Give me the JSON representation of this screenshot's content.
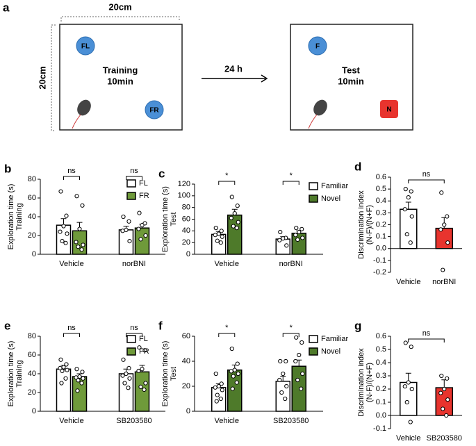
{
  "diagram": {
    "panel": "a",
    "width_label": "20cm",
    "height_label": "20cm",
    "left": {
      "obj1": "FL",
      "obj2": "FR",
      "title": "Training",
      "duration": "10min"
    },
    "delay": "24 h",
    "right": {
      "obj1": "F",
      "obj2": "N",
      "title": "Test",
      "duration": "10min"
    }
  },
  "chart_data": [
    {
      "type": "bar",
      "panel": "b",
      "ylabel": [
        "Exploration time  (s)",
        "Training"
      ],
      "categories": [
        "Vehicle",
        "norBNI"
      ],
      "significance": [
        "ns",
        "ns"
      ],
      "series": [
        {
          "name": "FL",
          "color": "#ffffff",
          "values": [
            31,
            26
          ],
          "errors": [
            7,
            4
          ],
          "points": [
            [
              67,
              41,
              30,
              24,
              22,
              14,
              12
            ],
            [
              40,
              35,
              26,
              25,
              14
            ]
          ]
        },
        {
          "name": "FR",
          "color": "#6f9a3a",
          "values": [
            25,
            28
          ],
          "errors": [
            9,
            4
          ],
          "points": [
            [
              62,
              52,
              27,
              13,
              10,
              8,
              5
            ],
            [
              44,
              33,
              31,
              27,
              20,
              16
            ]
          ]
        }
      ],
      "ylim": [
        0,
        80
      ],
      "yticks": [
        0,
        20,
        40,
        60,
        80
      ]
    },
    {
      "type": "bar",
      "panel": "c",
      "ylabel": [
        "Exploration time  (s)",
        "Test"
      ],
      "categories": [
        "Vehicle",
        "norBNI"
      ],
      "significance": [
        "*",
        "*"
      ],
      "series": [
        {
          "name": "Familiar",
          "color": "#ffffff",
          "values": [
            34,
            26
          ],
          "errors": [
            5,
            4
          ],
          "points": [
            [
              45,
              40,
              35,
              33,
              30,
              23,
              20
            ],
            [
              38,
              28,
              27,
              24,
              15
            ]
          ]
        },
        {
          "name": "Novel",
          "color": "#4e7a2a",
          "values": [
            67,
            36
          ],
          "errors": [
            10,
            4
          ],
          "points": [
            [
              98,
              83,
              70,
              62,
              55,
              48,
              45
            ],
            [
              45,
              43,
              38,
              33,
              28,
              25
            ]
          ]
        }
      ],
      "ylim": [
        0,
        120
      ],
      "yticks": [
        0,
        20,
        40,
        60,
        80,
        100,
        120
      ]
    },
    {
      "type": "bar",
      "panel": "d",
      "ylabel": [
        "Discrimination index",
        "(N-F)/(N+F)"
      ],
      "categories": [
        "Vehicle",
        "norBNI"
      ],
      "significance": "ns",
      "values": [
        0.33,
        0.17
      ],
      "errors": [
        0.06,
        0.09
      ],
      "colors": [
        "#ffffff",
        "#e8342e"
      ],
      "points": [
        [
          0.5,
          0.48,
          0.43,
          0.33,
          0.27,
          0.12,
          0.05
        ],
        [
          0.47,
          0.27,
          0.2,
          0.16,
          0.05,
          -0.18
        ]
      ],
      "ylim": [
        -0.2,
        0.6
      ],
      "yticks": [
        -0.2,
        -0.1,
        {
          "value": 0,
          "label": "0.0"
        },
        0.1,
        0.2,
        0.3,
        0.4,
        0.5,
        0.6
      ]
    },
    {
      "type": "bar",
      "panel": "e",
      "ylabel": [
        "Exploration time  (s)",
        "Training"
      ],
      "categories": [
        "Vehicle",
        "SB203580"
      ],
      "significance": [
        "ns",
        "ns"
      ],
      "series": [
        {
          "name": "FL",
          "color": "#ffffff",
          "values": [
            45,
            40
          ],
          "errors": [
            4,
            5
          ],
          "points": [
            [
              55,
              50,
              47,
              46,
              44,
              43,
              35,
              30
            ],
            [
              55,
              46,
              40,
              38,
              35,
              30,
              25
            ]
          ]
        },
        {
          "name": "FR",
          "color": "#6f9a3a",
          "values": [
            37,
            42
          ],
          "errors": [
            3,
            7
          ],
          "points": [
            [
              45,
              42,
              37,
              36,
              35,
              33,
              30,
              22
            ],
            [
              68,
              65,
              45,
              43,
              30,
              26,
              23
            ]
          ]
        }
      ],
      "ylim": [
        0,
        80
      ],
      "yticks": [
        0,
        20,
        40,
        60,
        80
      ]
    },
    {
      "type": "bar",
      "panel": "f",
      "ylabel": [
        "Exploration time  (s)",
        "Test"
      ],
      "categories": [
        "Vehicle",
        "SB203580"
      ],
      "significance": [
        "*",
        "*"
      ],
      "series": [
        {
          "name": "Familiar",
          "color": "#ffffff",
          "values": [
            19,
            24
          ],
          "errors": [
            3,
            4
          ],
          "points": [
            [
              30,
              22,
              20,
              19,
              17,
              13,
              10,
              8
            ],
            [
              40,
              40,
              30,
              25,
              20,
              15,
              10
            ]
          ]
        },
        {
          "name": "Novel",
          "color": "#4e7a2a",
          "values": [
            33,
            36
          ],
          "errors": [
            4,
            5
          ],
          "points": [
            [
              50,
              38,
              33,
              32,
              30,
              28,
              23,
              18
            ],
            [
              59,
              55,
              45,
              40,
              30,
              25,
              18
            ]
          ]
        }
      ],
      "ylim": [
        0,
        60
      ],
      "yticks": [
        0,
        20,
        40,
        60
      ]
    },
    {
      "type": "bar",
      "panel": "g",
      "ylabel": [
        "Discrimination index",
        "(N-F)/(N+F)"
      ],
      "categories": [
        "Vehicle",
        "SB203580"
      ],
      "significance": "ns",
      "values": [
        0.25,
        0.21
      ],
      "errors": [
        0.07,
        0.06
      ],
      "colors": [
        "#ffffff",
        "#e8342e"
      ],
      "points": [
        [
          0.55,
          0.52,
          0.25,
          0.22,
          0.2,
          0.1,
          -0.05
        ],
        [
          0.3,
          0.28,
          0.2,
          0.17,
          0.12,
          0.05,
          0
        ]
      ],
      "ylim": [
        -0.1,
        0.6
      ],
      "yticks": [
        -0.1,
        {
          "value": 0,
          "label": "0.0"
        },
        0.1,
        0.2,
        0.3,
        0.4,
        0.5,
        0.6
      ]
    }
  ]
}
